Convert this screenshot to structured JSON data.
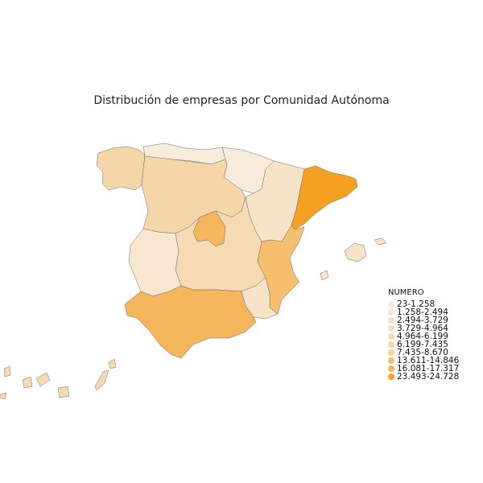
{
  "title": "Distribución de empresas por Comunidad Autónoma",
  "legend": {
    "title": "NUMERO",
    "items": [
      {
        "label": "23-1.258",
        "color": "#f7ebdc"
      },
      {
        "label": "1.258-2.494",
        "color": "#f7e7d0"
      },
      {
        "label": "2.494-3.729",
        "color": "#f6e3c8"
      },
      {
        "label": "3.729-4.964",
        "color": "#f6dfbe"
      },
      {
        "label": "4.964-6.199",
        "color": "#f6dab3"
      },
      {
        "label": "6.199-7.435",
        "color": "#f5d6a8"
      },
      {
        "label": "7.435-8.670",
        "color": "#f5d19d"
      },
      {
        "label": "13.611-14.846",
        "color": "#f5bf6e"
      },
      {
        "label": "16.081-17.317",
        "color": "#f5b55a"
      },
      {
        "label": "23.493-24.728",
        "color": "#f5a020"
      }
    ]
  },
  "regions": [
    {
      "id": "galicia",
      "color": "#f5d6a8"
    },
    {
      "id": "asturias-cantabria",
      "color": "#f7ebdc"
    },
    {
      "id": "pais-vasco-navarra-rioja",
      "color": "#f7ebdc"
    },
    {
      "id": "castilla-leon",
      "color": "#f5d6a8"
    },
    {
      "id": "aragon",
      "color": "#f6e3c8"
    },
    {
      "id": "cataluna",
      "color": "#f5a020"
    },
    {
      "id": "madrid",
      "color": "#f5b55a"
    },
    {
      "id": "extremadura",
      "color": "#f7e7d0"
    },
    {
      "id": "castilla-la-mancha",
      "color": "#f6dab3"
    },
    {
      "id": "valencia",
      "color": "#f5bf6e"
    },
    {
      "id": "murcia",
      "color": "#f6e3c8"
    },
    {
      "id": "andalucia",
      "color": "#f5b55a"
    },
    {
      "id": "baleares",
      "color": "#f6e3c8"
    },
    {
      "id": "canarias",
      "color": "#f6dab3"
    }
  ]
}
